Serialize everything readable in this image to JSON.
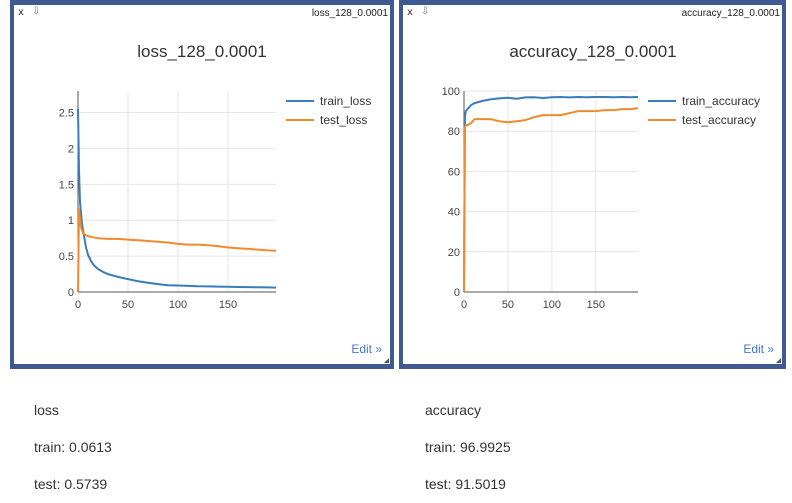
{
  "panels": [
    {
      "close_label": "x",
      "pin_label": "⇩",
      "window_title": "loss_128_0.0001",
      "edit_label": "Edit »"
    },
    {
      "close_label": "x",
      "pin_label": "⇩",
      "window_title": "accuracy_128_0.0001",
      "edit_label": "Edit »"
    }
  ],
  "chart_data": [
    {
      "type": "line",
      "title": "loss_128_0.0001",
      "xlabel": "",
      "ylabel": "",
      "xlim": [
        0,
        198
      ],
      "ylim": [
        0,
        2.8
      ],
      "xticks": [
        0,
        50,
        100,
        150
      ],
      "yticks": [
        0,
        0.5,
        1,
        1.5,
        2,
        2.5
      ],
      "grid": true,
      "legend_position": "top-right",
      "series": [
        {
          "name": "train_loss",
          "color": "#3a7cba",
          "x": [
            0,
            1,
            2,
            4,
            6,
            8,
            10,
            13,
            16,
            20,
            25,
            30,
            40,
            50,
            60,
            70,
            80,
            90,
            100,
            110,
            120,
            130,
            140,
            150,
            160,
            170,
            180,
            190,
            198
          ],
          "y": [
            2.55,
            1.7,
            1.25,
            0.95,
            0.78,
            0.62,
            0.52,
            0.43,
            0.37,
            0.32,
            0.28,
            0.25,
            0.21,
            0.18,
            0.15,
            0.13,
            0.11,
            0.095,
            0.09,
            0.085,
            0.08,
            0.078,
            0.075,
            0.072,
            0.07,
            0.068,
            0.066,
            0.064,
            0.0613
          ]
        },
        {
          "name": "test_loss",
          "color": "#f08a2c",
          "x": [
            0,
            1,
            2,
            3,
            5,
            8,
            12,
            20,
            30,
            40,
            50,
            60,
            70,
            80,
            90,
            100,
            110,
            120,
            130,
            140,
            150,
            160,
            170,
            180,
            190,
            198
          ],
          "y": [
            0.0,
            1.15,
            1.02,
            0.9,
            0.82,
            0.79,
            0.77,
            0.75,
            0.74,
            0.74,
            0.73,
            0.72,
            0.71,
            0.7,
            0.69,
            0.67,
            0.66,
            0.66,
            0.65,
            0.64,
            0.62,
            0.61,
            0.6,
            0.59,
            0.58,
            0.5739
          ]
        }
      ]
    },
    {
      "type": "line",
      "title": "accuracy_128_0.0001",
      "xlabel": "",
      "ylabel": "",
      "xlim": [
        0,
        198
      ],
      "ylim": [
        0,
        100
      ],
      "xticks": [
        0,
        50,
        100,
        150
      ],
      "yticks": [
        0,
        20,
        40,
        60,
        80,
        100
      ],
      "grid": true,
      "legend_position": "top-right",
      "series": [
        {
          "name": "train_accuracy",
          "color": "#3a7cba",
          "x": [
            0,
            1,
            2,
            4,
            8,
            12,
            20,
            30,
            40,
            50,
            60,
            70,
            80,
            90,
            100,
            110,
            120,
            130,
            140,
            150,
            160,
            170,
            180,
            190,
            198
          ],
          "y": [
            0,
            87,
            90,
            91,
            93,
            94,
            95,
            95.8,
            96.3,
            96.6,
            96.1,
            96.8,
            96.9,
            96.5,
            96.9,
            97,
            96.8,
            97,
            96.9,
            97,
            97,
            96.9,
            97,
            96.9,
            96.9925
          ]
        },
        {
          "name": "test_accuracy",
          "color": "#f08a2c",
          "x": [
            0,
            1,
            2,
            4,
            8,
            12,
            20,
            30,
            40,
            50,
            60,
            70,
            80,
            90,
            100,
            110,
            120,
            130,
            140,
            150,
            160,
            170,
            180,
            190,
            198
          ],
          "y": [
            0,
            82,
            83,
            83,
            84,
            86,
            86,
            86,
            85,
            84.5,
            85,
            85.5,
            87,
            88,
            88,
            88,
            89,
            90,
            90,
            90,
            90.5,
            90.5,
            91,
            91,
            91.5019
          ]
        }
      ]
    }
  ],
  "stats": {
    "loss": {
      "heading": "loss",
      "train": "train: 0.0613",
      "test": "test: 0.5739"
    },
    "accuracy": {
      "heading": "accuracy",
      "train": "train: 96.9925",
      "test": "test: 91.5019"
    }
  }
}
